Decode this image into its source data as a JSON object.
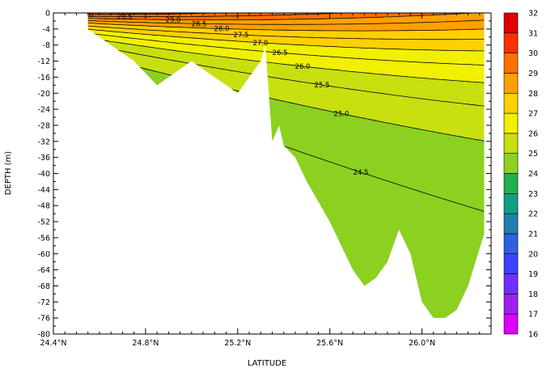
{
  "chart_data": {
    "type": "heatmap",
    "title": "",
    "xlabel": "LATITUDE",
    "ylabel": "DEPTH (m)",
    "xlim": [
      24.4,
      26.3
    ],
    "ylim": [
      -80,
      0
    ],
    "x_ticks": [
      "24.4°N",
      "24.8°N",
      "25.2°N",
      "25.6°N",
      "26.0°N"
    ],
    "x_tick_values": [
      24.4,
      24.8,
      25.2,
      25.6,
      26.0
    ],
    "y_ticks": [
      "0",
      "-4",
      "-8",
      "-12",
      "-16",
      "-20",
      "-24",
      "-28",
      "-32",
      "-36",
      "-40",
      "-44",
      "-48",
      "-52",
      "-56",
      "-60",
      "-64",
      "-68",
      "-72",
      "-76",
      "-80"
    ],
    "y_tick_values": [
      0,
      -4,
      -8,
      -12,
      -16,
      -20,
      -24,
      -28,
      -32,
      -36,
      -40,
      -44,
      -48,
      -52,
      -56,
      -60,
      -64,
      -68,
      -72,
      -76,
      -80
    ],
    "colorbar": {
      "ticks": [
        "32",
        "31",
        "30",
        "29",
        "28",
        "27",
        "26",
        "25",
        "24",
        "23",
        "22",
        "21",
        "20",
        "19",
        "18",
        "17",
        "16"
      ],
      "levels": [
        16,
        17,
        18,
        19,
        20,
        21,
        22,
        23,
        24,
        25,
        26,
        27,
        28,
        29,
        30,
        31,
        32
      ],
      "colors": [
        "#dd00ff",
        "#a020f0",
        "#7030ff",
        "#4040ff",
        "#3060e0",
        "#2080b0",
        "#10a080",
        "#20b050",
        "#8cd020",
        "#c8e010",
        "#f0f000",
        "#ffd000",
        "#ffa000",
        "#ff7000",
        "#ff3000",
        "#e00000",
        "#a00000"
      ]
    },
    "contour_labels": [
      "30.0",
      "29.5",
      "29.0",
      "28.5",
      "28.0",
      "27.5",
      "27.0",
      "26.5",
      "26.0",
      "25.5",
      "25.0",
      "24.5"
    ],
    "bottom_profile": {
      "x": [
        24.55,
        24.75,
        24.85,
        24.9,
        25.0,
        25.1,
        25.2,
        25.3,
        25.32,
        25.35,
        25.38,
        25.4,
        25.45,
        25.5,
        25.55,
        25.6,
        25.65,
        25.7,
        25.75,
        25.8,
        25.85,
        25.9,
        25.95,
        26.0,
        26.05,
        26.1,
        26.15,
        26.2,
        26.27
      ],
      "depth": [
        -4,
        -12,
        -18,
        -16,
        -12,
        -16,
        -20,
        -12,
        -8,
        -32,
        -28,
        -33,
        -36,
        -42,
        -47,
        -52,
        -58,
        -64,
        -68,
        -66,
        -62,
        -54,
        -60,
        -72,
        -76,
        -76,
        -74,
        -68,
        -55
      ]
    }
  }
}
